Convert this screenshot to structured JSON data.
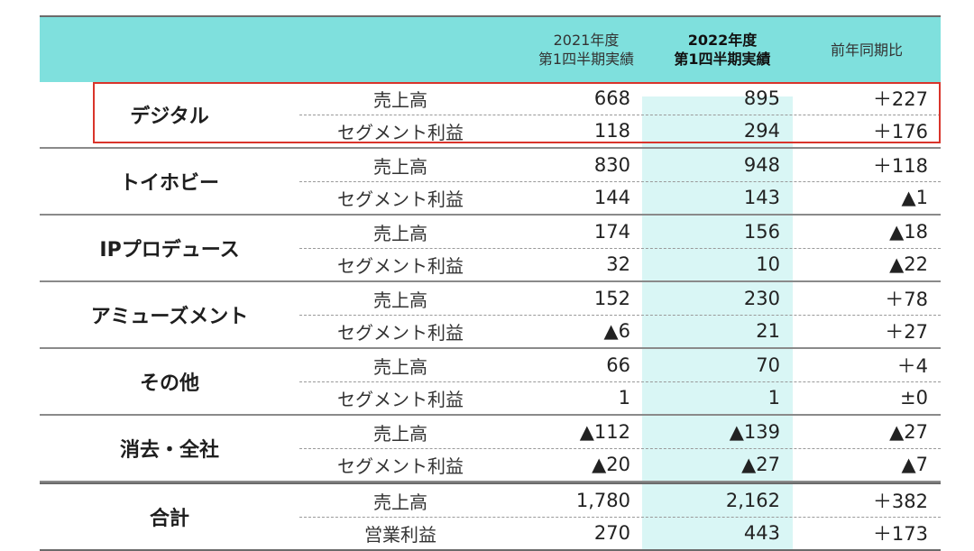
{
  "header": {
    "prev_line1": "2021年度",
    "prev_line2": "第1四半期実績",
    "cur_line1": "2022年度",
    "cur_line2": "第1四半期実績",
    "yoy": "前年同期比"
  },
  "segments": [
    {
      "name": "デジタル",
      "rows": [
        {
          "label": "売上高",
          "prev": "668",
          "cur": "895",
          "yoy": "＋227"
        },
        {
          "label": "セグメント利益",
          "prev": "118",
          "cur": "294",
          "yoy": "＋176"
        }
      ]
    },
    {
      "name": "トイホビー",
      "rows": [
        {
          "label": "売上高",
          "prev": "830",
          "cur": "948",
          "yoy": "＋118"
        },
        {
          "label": "セグメント利益",
          "prev": "144",
          "cur": "143",
          "yoy": "▲1"
        }
      ]
    },
    {
      "name": "IPプロデュース",
      "rows": [
        {
          "label": "売上高",
          "prev": "174",
          "cur": "156",
          "yoy": "▲18"
        },
        {
          "label": "セグメント利益",
          "prev": "32",
          "cur": "10",
          "yoy": "▲22"
        }
      ]
    },
    {
      "name": "アミューズメント",
      "rows": [
        {
          "label": "売上高",
          "prev": "152",
          "cur": "230",
          "yoy": "＋78"
        },
        {
          "label": "セグメント利益",
          "prev": "▲6",
          "cur": "21",
          "yoy": "＋27"
        }
      ]
    },
    {
      "name": "その他",
      "rows": [
        {
          "label": "売上高",
          "prev": "66",
          "cur": "70",
          "yoy": "＋4"
        },
        {
          "label": "セグメント利益",
          "prev": "1",
          "cur": "1",
          "yoy": "±0"
        }
      ]
    },
    {
      "name": "消去・全社",
      "rows": [
        {
          "label": "売上高",
          "prev": "▲112",
          "cur": "▲139",
          "yoy": "▲27"
        },
        {
          "label": "セグメント利益",
          "prev": "▲20",
          "cur": "▲27",
          "yoy": "▲7"
        }
      ]
    },
    {
      "name": "合計",
      "rows": [
        {
          "label": "売上高",
          "prev": "1,780",
          "cur": "2,162",
          "yoy": "＋382"
        },
        {
          "label": "営業利益",
          "prev": "270",
          "cur": "443",
          "yoy": "＋173"
        }
      ]
    }
  ],
  "colors": {
    "header_bg": "#7fe0dd",
    "highlight_col": "#d9f6f5",
    "highlight_box": "#d9342b"
  }
}
